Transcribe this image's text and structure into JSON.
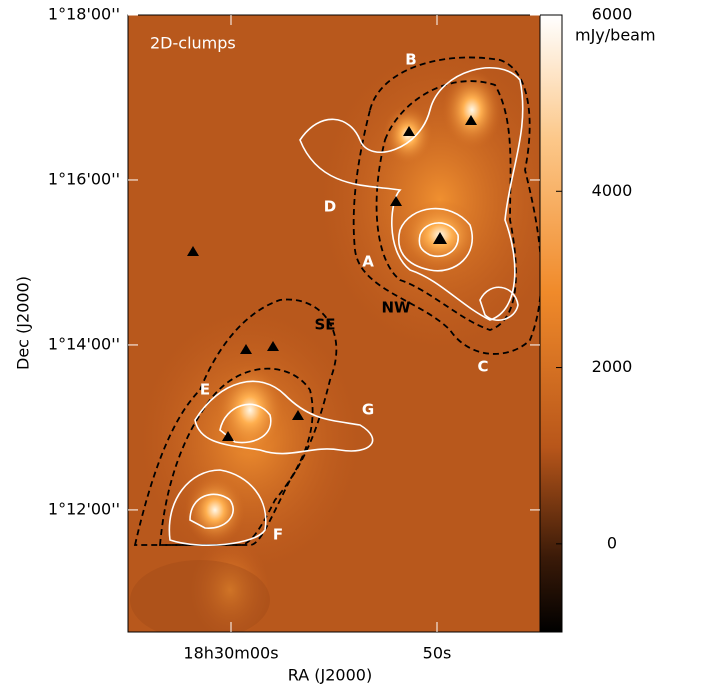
{
  "chart_data": {
    "type": "image",
    "title": "2D-clumps",
    "colorbar_label": "mJy/beam",
    "x_label": "RA (J2000)",
    "y_label": "Dec (J2000)",
    "annotations": [
      "B",
      "D",
      "A",
      "NW",
      "SE",
      "E",
      "G",
      "C",
      "F"
    ],
    "xlim": [
      1805,
      1785
    ],
    "xticks": [
      {
        "value": 1800,
        "label": "18h30m00s"
      },
      {
        "value": 1790,
        "label": "50s"
      }
    ],
    "ylim": [
      70.52,
      78
    ],
    "yticks": [
      {
        "value": 72,
        "label": "1°12'00''"
      },
      {
        "value": 74,
        "label": "1°14'00''"
      },
      {
        "value": 76,
        "label": "1°16'00''"
      },
      {
        "value": 78,
        "label": "1°18'00''"
      }
    ],
    "clim": [
      -1000,
      6000
    ],
    "cticks": [
      0,
      2000,
      4000,
      6000
    ]
  }
}
